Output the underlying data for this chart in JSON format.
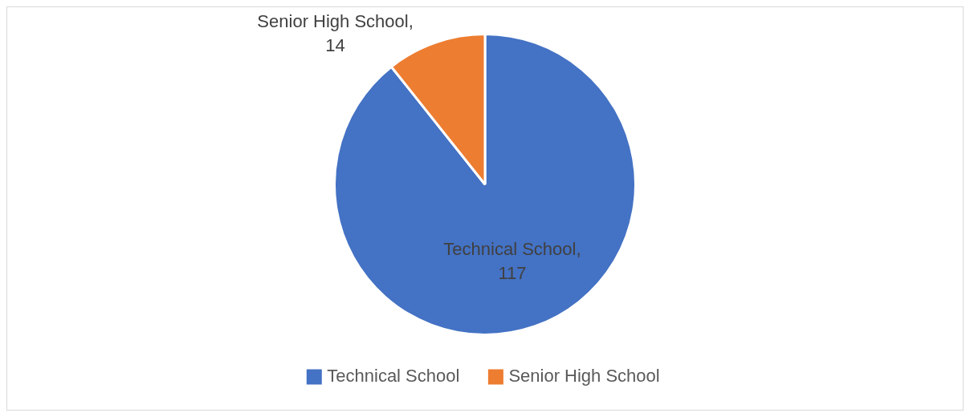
{
  "chart_data": {
    "type": "pie",
    "categories": [
      "Technical School",
      "Senior High School"
    ],
    "values": [
      117,
      14
    ],
    "colors": [
      "#4472c4",
      "#ed7d31"
    ],
    "value_labels": [
      "Technical School, 117",
      "Senior High School, 14"
    ],
    "legend": "bottom"
  }
}
